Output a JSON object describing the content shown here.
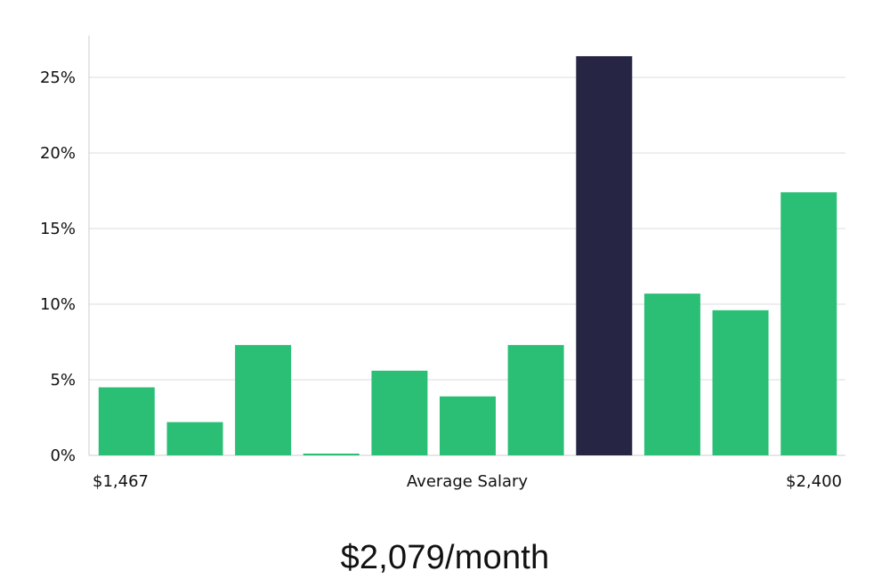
{
  "chart_data": {
    "type": "bar",
    "categories": [
      "1",
      "2",
      "3",
      "4",
      "5",
      "6",
      "7",
      "8",
      "9",
      "10",
      "11"
    ],
    "values": [
      4.5,
      2.2,
      7.3,
      0.05,
      5.6,
      3.9,
      7.3,
      26.4,
      10.7,
      9.6,
      17.4
    ],
    "highlight_index": 7,
    "ylim": [
      0,
      27.5
    ],
    "yticks": [
      0,
      5,
      10,
      15,
      20,
      25
    ],
    "ytick_labels": [
      "0%",
      "5%",
      "10%",
      "15%",
      "20%",
      "25%"
    ],
    "x_left_label": "$1,467",
    "xlabel": "Average Salary",
    "x_right_label": "$2,400",
    "grid": true,
    "colors": {
      "bar": "#2bbf76",
      "highlight": "#272544",
      "grid": "#dddddd",
      "axis": "#cccccc"
    }
  },
  "headline": "$2,079/month"
}
